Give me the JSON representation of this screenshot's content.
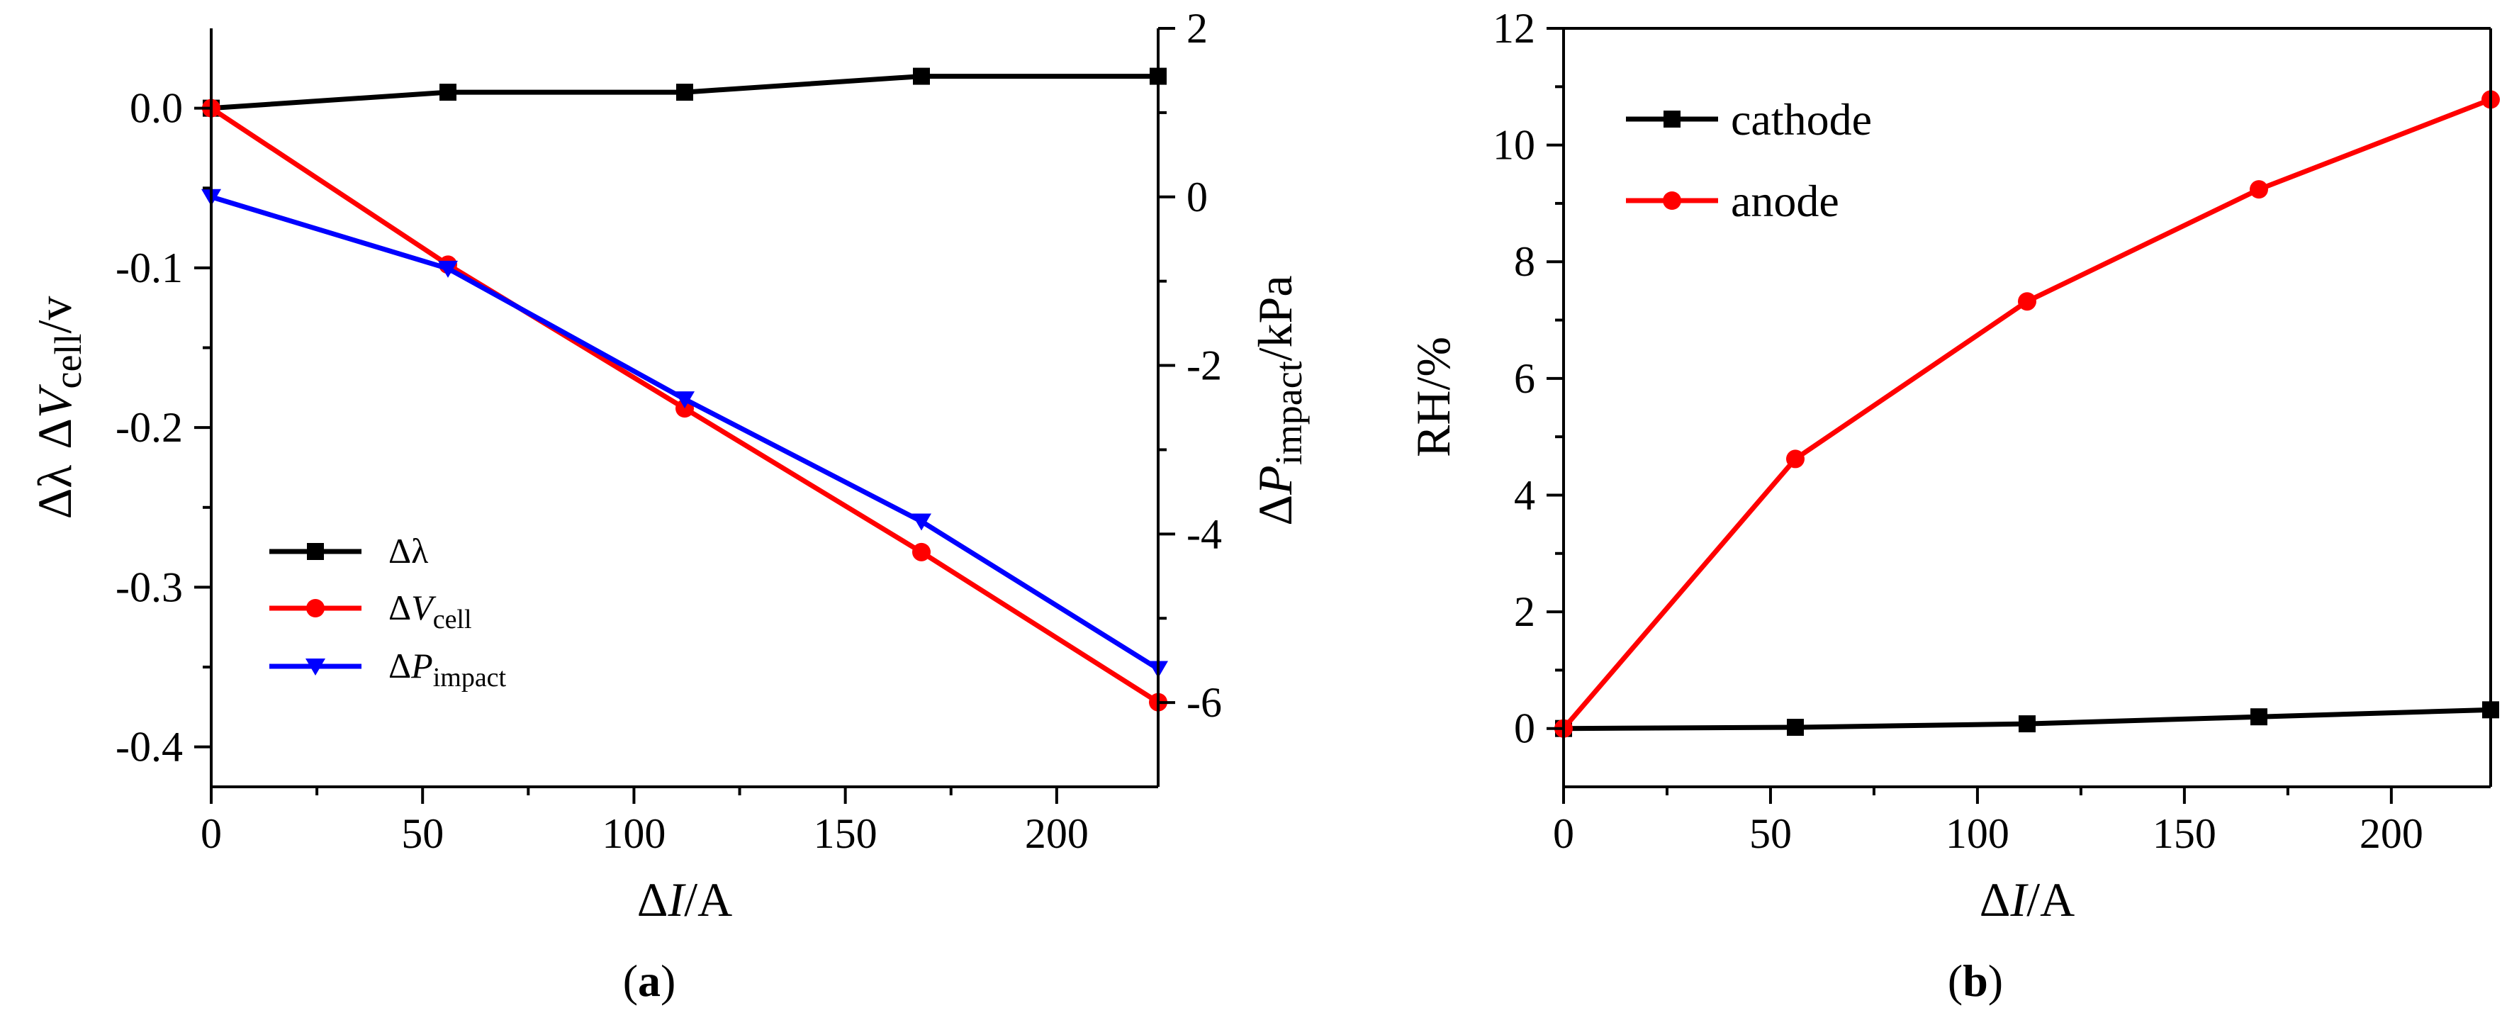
{
  "chart_data": [
    {
      "id": "a",
      "type": "line",
      "caption": {
        "open": "(",
        "letter": "a",
        "close": ")"
      },
      "x": [
        0,
        56,
        112,
        168,
        224
      ],
      "xlim": [
        0,
        224
      ],
      "xticks": [
        0,
        50,
        100,
        150,
        200
      ],
      "xlabel": {
        "prefix": "Δ",
        "italic": "I",
        "suffix": "/A"
      },
      "ylim_left": [
        -0.425,
        0.05
      ],
      "yticks_left": [
        0.0,
        -0.1,
        -0.2,
        -0.3,
        -0.4
      ],
      "ytick_labels_left": [
        "0.0",
        "-0.1",
        "-0.2",
        "-0.3",
        "-0.4"
      ],
      "ylabel_left": {
        "lambda": "Δλ",
        "dv": "Δ",
        "v": "V",
        "sub": "cell",
        "unit": "/v"
      },
      "ylim_right": [
        -7.0,
        2.0
      ],
      "yticks_right": [
        2,
        0,
        -2,
        -4,
        -6
      ],
      "ytick_labels_right": [
        "2",
        "0",
        "-2",
        "-4",
        "-6"
      ],
      "ylabel_right": {
        "d": "Δ",
        "p": "P",
        "sub": "impact",
        "unit": "/kPa"
      },
      "series": [
        {
          "name": "Δλ",
          "axis": "left",
          "color": "#000000",
          "marker": "square",
          "values": [
            0.0,
            0.01,
            0.01,
            0.02,
            0.02
          ]
        },
        {
          "name": "ΔVcell",
          "axis": "left",
          "color": "#ff0000",
          "marker": "circle",
          "values": [
            0.0,
            -0.098,
            -0.188,
            -0.278,
            -0.372
          ]
        },
        {
          "name": "ΔPimpact",
          "axis": "right",
          "color": "#0000ff",
          "marker": "triangle-down",
          "values": [
            0.0,
            -0.85,
            -2.4,
            -3.85,
            -5.6
          ]
        }
      ],
      "legend": [
        {
          "main": "Δλ",
          "italic": "",
          "sub": ""
        },
        {
          "main": "Δ",
          "italic": "V",
          "sub": "cell"
        },
        {
          "main": "Δ",
          "italic": "P",
          "sub": "impact"
        }
      ],
      "legend_position": "bottom-left"
    },
    {
      "id": "b",
      "type": "line",
      "caption": {
        "open": "(",
        "letter": "b",
        "close": ")"
      },
      "x": [
        0,
        56,
        112,
        168,
        224
      ],
      "xlim": [
        0,
        224
      ],
      "xticks": [
        0,
        50,
        100,
        150,
        200
      ],
      "xlabel": {
        "prefix": "Δ",
        "italic": "I",
        "suffix": "/A"
      },
      "ylim": [
        -1,
        12
      ],
      "yticks": [
        0,
        2,
        4,
        6,
        8,
        10,
        12
      ],
      "ylabel": "RH/%",
      "series": [
        {
          "name": "cathode",
          "color": "#000000",
          "marker": "square",
          "values": [
            0.0,
            0.02,
            0.08,
            0.2,
            0.32
          ]
        },
        {
          "name": "anode",
          "color": "#ff0000",
          "marker": "circle",
          "values": [
            0.0,
            4.62,
            7.32,
            9.24,
            10.78
          ]
        }
      ],
      "legend_position": "top-left"
    }
  ]
}
